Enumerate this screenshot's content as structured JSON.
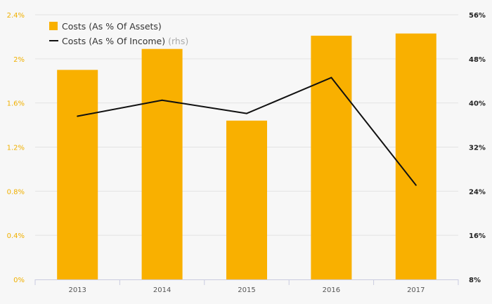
{
  "chart_data": {
    "type": "bar+line",
    "categories": [
      "2013",
      "2014",
      "2015",
      "2016",
      "2017"
    ],
    "series": [
      {
        "name": "Costs (As % Of Assets)",
        "type": "bar",
        "axis": "left",
        "color": "#f9b000",
        "values": [
          1.9,
          2.09,
          1.44,
          2.21,
          2.23
        ]
      },
      {
        "name": "Costs (As % Of Income)",
        "name_suffix": "(rhs)",
        "type": "line",
        "axis": "right",
        "color": "#111111",
        "values": [
          37.6,
          40.5,
          38.1,
          44.6,
          25.1
        ]
      }
    ],
    "y_left": {
      "min": 0,
      "max": 2.4,
      "ticks": [
        "0%",
        "0.4%",
        "0.8%",
        "1.2%",
        "1.6%",
        "2%",
        "2.4%"
      ],
      "tick_color": "#f0b000"
    },
    "y_right": {
      "min": 8,
      "max": 56,
      "ticks": [
        "8%",
        "16%",
        "24%",
        "32%",
        "40%",
        "48%",
        "56%"
      ]
    },
    "grid": true,
    "legend": "top-left"
  }
}
